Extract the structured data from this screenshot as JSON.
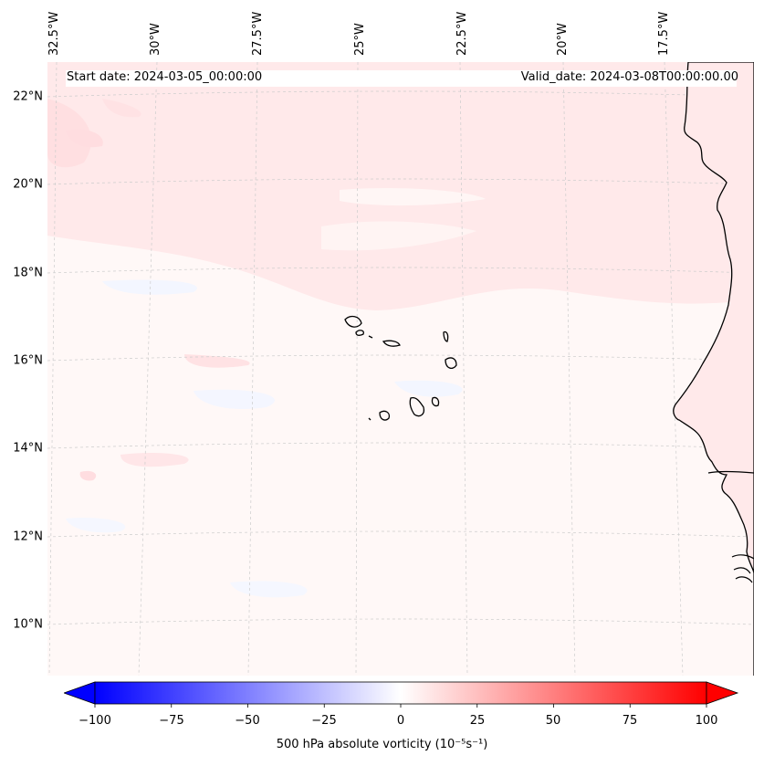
{
  "map": {
    "latitude_labels": [
      "22°N",
      "20°N",
      "18°N",
      "16°N",
      "14°N",
      "12°N",
      "10°N"
    ],
    "longitude_labels": [
      "32.5°W",
      "30°W",
      "27.5°W",
      "25°W",
      "22.5°W",
      "20°W",
      "17.5°W"
    ],
    "start_date": "Start date: 2024-03-05_00:00:00",
    "valid_date": "Valid_date: 2024-03-08T00:00:00.00",
    "field_colors": {
      "positive": "#ffe9ea",
      "negative": "#f3f6ff",
      "neutral": "#fff8f7"
    },
    "coastline_color": "#000000",
    "gridline_color": "#cccccc"
  },
  "colorbar": {
    "title": "500 hPa absolute vorticity (10⁻⁵s⁻¹)",
    "ticks": [
      "−100",
      "−75",
      "−50",
      "−25",
      "0",
      "25",
      "50",
      "75",
      "100"
    ],
    "range": [
      -100,
      100
    ],
    "low_color": "#0000ff",
    "mid_color": "#ffffff",
    "high_color": "#ff0000",
    "extend": "both"
  }
}
